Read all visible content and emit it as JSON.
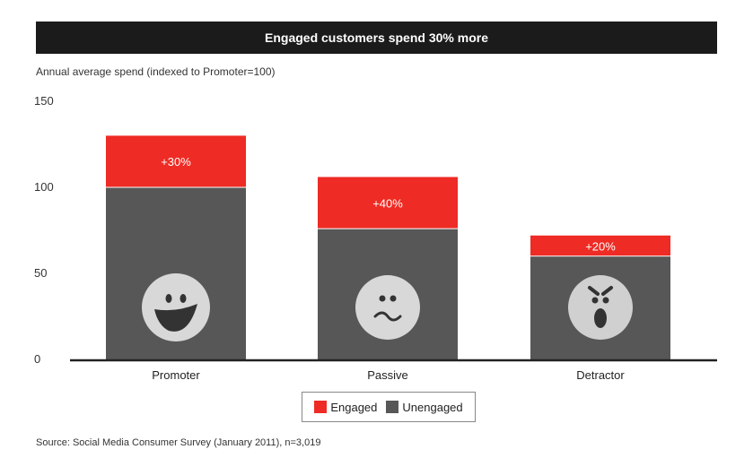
{
  "title": "Engaged customers spend 30% more",
  "ylabel": "Annual average spend (indexed to Promoter=100)",
  "source": "Source: Social Media Consumer Survey (January 2011), n=3,019",
  "colors": {
    "engaged": "#ee2b24",
    "unengaged": "#575757",
    "title_bg": "#1b1b1b"
  },
  "legend": {
    "engaged": "Engaged",
    "unengaged": "Unengaged"
  },
  "chart_data": {
    "type": "bar",
    "stacked": true,
    "categories": [
      "Promoter",
      "Passive",
      "Detractor"
    ],
    "series": [
      {
        "name": "Unengaged",
        "values": [
          100,
          76,
          60
        ]
      },
      {
        "name": "Engaged",
        "values": [
          30,
          30,
          12
        ]
      }
    ],
    "data_labels": [
      "+30%",
      "+40%",
      "+20%"
    ],
    "faces": [
      "happy-face-icon",
      "neutral-face-icon",
      "angry-face-icon"
    ],
    "ylim": [
      0,
      150
    ],
    "yticks": [
      0,
      50,
      100,
      150
    ]
  }
}
